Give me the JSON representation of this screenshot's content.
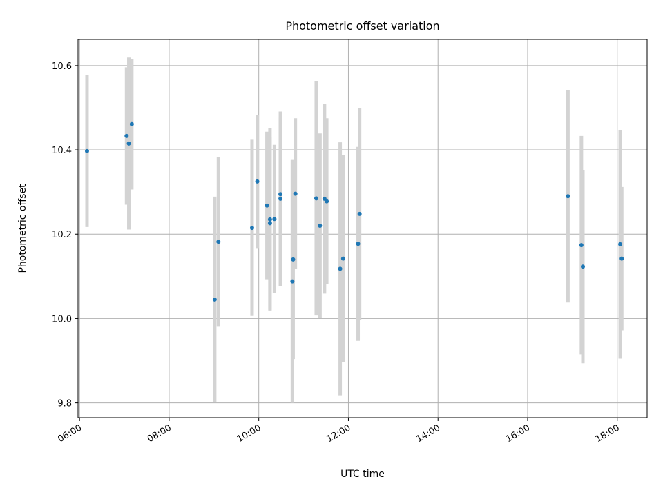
{
  "chart_data": {
    "type": "scatter",
    "title": "Photometric offset variation",
    "xlabel": "UTC time",
    "ylabel": "Photometric offset",
    "xlim": [
      "05:58",
      "18:40"
    ],
    "ylim": [
      9.765,
      10.662
    ],
    "xticks": [
      "06:00",
      "08:00",
      "10:00",
      "12:00",
      "14:00",
      "16:00",
      "18:00"
    ],
    "yticks": [
      "9.8",
      "10.0",
      "10.2",
      "10.4",
      "10.6"
    ],
    "grid": true,
    "legend": "none",
    "colors": {
      "point": "#1f77b4",
      "errorbar": "#d3d3d3",
      "grid": "#b0b0b0"
    },
    "points": [
      {
        "x": "06:10",
        "y": 10.397,
        "err": 0.18
      },
      {
        "x": "07:03",
        "y": 10.433,
        "err": 0.163
      },
      {
        "x": "07:06",
        "y": 10.415,
        "err": 0.204
      },
      {
        "x": "07:10",
        "y": 10.461,
        "err": 0.155
      },
      {
        "x": "09:01",
        "y": 10.045,
        "err": 0.244
      },
      {
        "x": "09:06",
        "y": 10.182,
        "err": 0.2
      },
      {
        "x": "09:51",
        "y": 10.215,
        "err": 0.209
      },
      {
        "x": "09:58",
        "y": 10.325,
        "err": 0.158
      },
      {
        "x": "10:11",
        "y": 10.268,
        "err": 0.175
      },
      {
        "x": "10:15",
        "y": 10.235,
        "err": 0.216
      },
      {
        "x": "10:15",
        "y": 10.226,
        "err": 0.205
      },
      {
        "x": "10:21",
        "y": 10.236,
        "err": 0.176
      },
      {
        "x": "10:29",
        "y": 10.284,
        "err": 0.207
      },
      {
        "x": "10:29",
        "y": 10.295,
        "err": 0.181
      },
      {
        "x": "10:45",
        "y": 10.088,
        "err": 0.288
      },
      {
        "x": "10:46",
        "y": 10.14,
        "err": 0.236
      },
      {
        "x": "10:49",
        "y": 10.296,
        "err": 0.179
      },
      {
        "x": "11:17",
        "y": 10.285,
        "err": 0.278
      },
      {
        "x": "11:22",
        "y": 10.22,
        "err": 0.219
      },
      {
        "x": "11:28",
        "y": 10.284,
        "err": 0.225
      },
      {
        "x": "11:31",
        "y": 10.278,
        "err": 0.197
      },
      {
        "x": "11:49",
        "y": 10.118,
        "err": 0.3
      },
      {
        "x": "11:53",
        "y": 10.142,
        "err": 0.245
      },
      {
        "x": "12:13",
        "y": 10.177,
        "err": 0.23
      },
      {
        "x": "12:15",
        "y": 10.248,
        "err": 0.252
      },
      {
        "x": "16:54",
        "y": 10.29,
        "err": 0.252
      },
      {
        "x": "17:12",
        "y": 10.174,
        "err": 0.259
      },
      {
        "x": "17:14",
        "y": 10.123,
        "err": 0.229
      },
      {
        "x": "18:04",
        "y": 10.176,
        "err": 0.271
      },
      {
        "x": "18:06",
        "y": 10.142,
        "err": 0.17
      }
    ]
  }
}
